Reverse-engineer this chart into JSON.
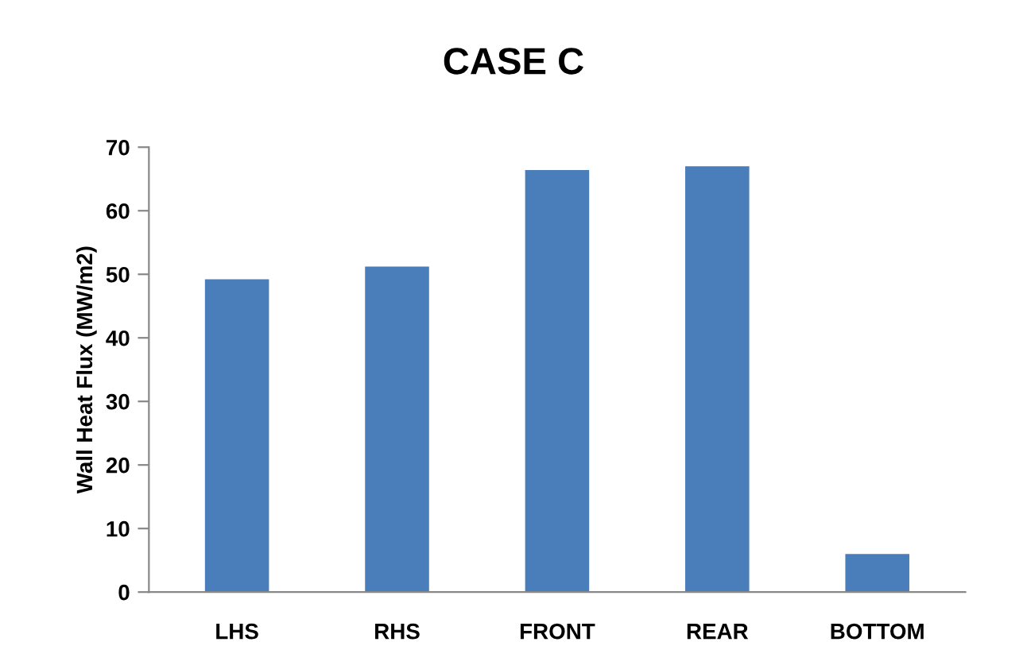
{
  "chart_data": {
    "type": "bar",
    "title": "CASE C",
    "ylabel": "Wall Heat Flux (MW/m2)",
    "categories": [
      "LHS",
      "RHS",
      "FRONT",
      "REAR",
      "BOTTOM"
    ],
    "values": [
      49.2,
      51.2,
      66.4,
      67.0,
      6.0
    ],
    "color": "#4a7ebb",
    "ylim": [
      0,
      70
    ],
    "yticks": [
      0,
      10,
      20,
      30,
      40,
      50,
      60,
      70
    ],
    "grid": false
  }
}
